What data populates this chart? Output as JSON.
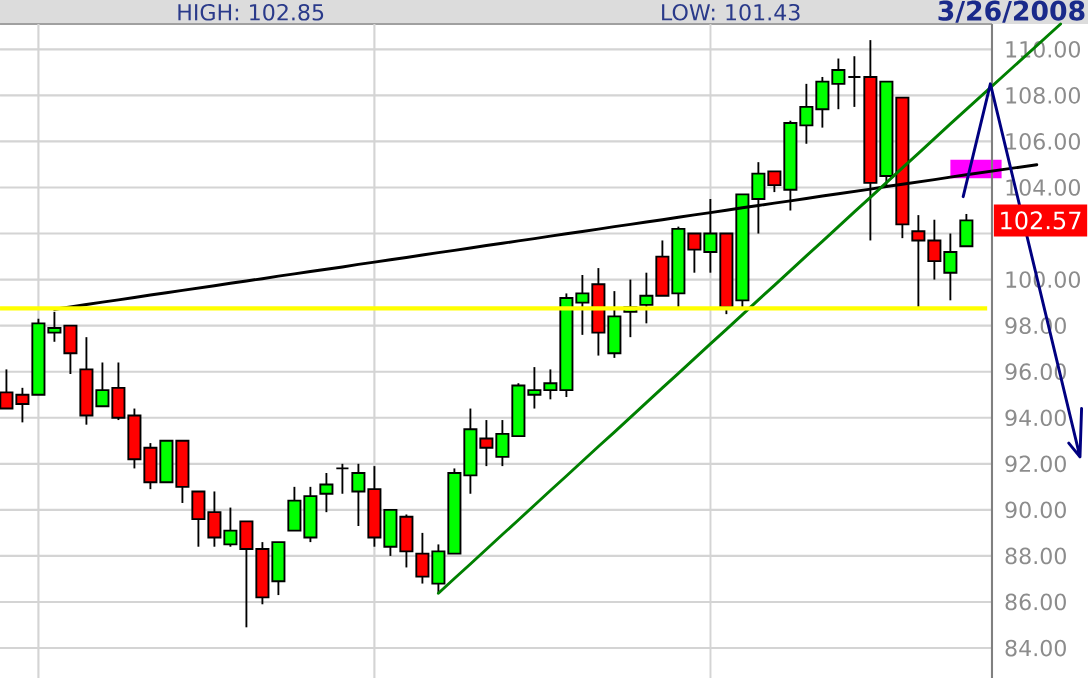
{
  "chart_data": {
    "type": "candlestick",
    "title": "3/26/2008",
    "annotations": [
      "HIGH: 102.85",
      "LOW: 101.43",
      "102.57"
    ],
    "categories": [
      null,
      null,
      null,
      null,
      null,
      null,
      null,
      null,
      null,
      null,
      null,
      null,
      null,
      null,
      null,
      null,
      null,
      null,
      null,
      null,
      null,
      null,
      null,
      null,
      null,
      null,
      null,
      null,
      null,
      null,
      null,
      null,
      null,
      null,
      null,
      null,
      null,
      null,
      null,
      null,
      null,
      null,
      null,
      null,
      null,
      null,
      null,
      null,
      null,
      null,
      null,
      null,
      null,
      null,
      null,
      null,
      null,
      null,
      null,
      null,
      null
    ],
    "ohlc": [
      [
        95.1,
        96.1,
        94.4,
        94.4
      ],
      [
        95.0,
        95.3,
        93.8,
        94.6
      ],
      [
        95.0,
        98.3,
        95.0,
        98.1
      ],
      [
        97.7,
        98.6,
        97.3,
        97.9
      ],
      [
        98.0,
        98.0,
        95.9,
        96.8
      ],
      [
        96.1,
        97.5,
        93.7,
        94.1
      ],
      [
        94.5,
        96.4,
        94.5,
        95.2
      ],
      [
        95.3,
        96.4,
        93.9,
        94.0
      ],
      [
        94.1,
        94.4,
        91.8,
        92.2
      ],
      [
        92.7,
        92.9,
        90.9,
        91.2
      ],
      [
        91.2,
        93.0,
        91.2,
        93.0
      ],
      [
        93.0,
        93.0,
        90.3,
        91.0
      ],
      [
        90.8,
        90.8,
        88.4,
        89.6
      ],
      [
        89.9,
        90.8,
        88.4,
        88.8
      ],
      [
        88.5,
        90.1,
        88.4,
        89.1
      ],
      [
        89.5,
        89.5,
        84.9,
        88.3
      ],
      [
        88.3,
        88.6,
        85.9,
        86.2
      ],
      [
        86.9,
        88.6,
        86.3,
        88.6
      ],
      [
        89.1,
        91.0,
        89.1,
        90.4
      ],
      [
        88.8,
        91.0,
        88.6,
        90.6
      ],
      [
        90.7,
        91.6,
        89.9,
        91.1
      ],
      [
        91.8,
        92.0,
        90.7,
        91.8
      ],
      [
        90.8,
        92.0,
        89.3,
        91.6
      ],
      [
        90.9,
        91.9,
        88.4,
        88.8
      ],
      [
        88.4,
        90.0,
        88.0,
        90.0
      ],
      [
        89.7,
        89.8,
        87.5,
        88.2
      ],
      [
        88.1,
        89.0,
        86.8,
        87.1
      ],
      [
        86.8,
        88.5,
        86.4,
        88.2
      ],
      [
        88.1,
        91.8,
        88.1,
        91.6
      ],
      [
        91.5,
        94.4,
        90.7,
        93.5
      ],
      [
        93.1,
        93.9,
        91.9,
        92.7
      ],
      [
        92.3,
        93.9,
        91.9,
        93.3
      ],
      [
        93.2,
        95.5,
        93.2,
        95.4
      ],
      [
        95.0,
        96.2,
        94.4,
        95.2
      ],
      [
        95.2,
        96.1,
        94.8,
        95.5
      ],
      [
        95.2,
        99.4,
        94.9,
        99.2
      ],
      [
        99.0,
        100.2,
        97.6,
        99.4
      ],
      [
        99.8,
        100.5,
        96.7,
        97.7
      ],
      [
        96.8,
        99.5,
        96.6,
        98.4
      ],
      [
        98.6,
        100.0,
        97.5,
        98.8
      ],
      [
        98.9,
        100.3,
        98.1,
        99.3
      ],
      [
        101.0,
        101.7,
        99.3,
        99.3
      ],
      [
        99.4,
        102.3,
        98.7,
        102.2
      ],
      [
        102.0,
        102.0,
        100.3,
        101.3
      ],
      [
        101.2,
        103.5,
        100.3,
        102.0
      ],
      [
        102.0,
        102.0,
        98.5,
        98.8
      ],
      [
        99.1,
        103.7,
        98.8,
        103.7
      ],
      [
        103.5,
        105.1,
        102.0,
        104.6
      ],
      [
        104.7,
        104.7,
        103.8,
        104.1
      ],
      [
        103.9,
        106.9,
        103.0,
        106.8
      ],
      [
        106.7,
        108.5,
        105.9,
        107.5
      ],
      [
        107.4,
        108.8,
        106.6,
        108.6
      ],
      [
        108.5,
        109.6,
        107.4,
        109.1
      ],
      [
        108.8,
        109.7,
        107.5,
        108.8
      ],
      [
        108.8,
        110.4,
        101.7,
        104.2
      ],
      [
        104.5,
        108.6,
        104.0,
        108.6
      ],
      [
        107.9,
        107.9,
        101.8,
        102.4
      ],
      [
        102.1,
        102.8,
        98.8,
        101.7
      ],
      [
        101.7,
        102.6,
        100.0,
        100.8
      ],
      [
        100.3,
        102.0,
        99.1,
        101.2
      ],
      [
        101.45,
        102.85,
        101.43,
        102.57
      ]
    ],
    "colors": [
      "#ff0000",
      "#ff0000",
      "#00ff00",
      "#00ff00",
      "#ff0000",
      "#ff0000",
      "#00ff00",
      "#ff0000",
      "#ff0000",
      "#ff0000",
      "#00ff00",
      "#ff0000",
      "#ff0000",
      "#ff0000",
      "#00ff00",
      "#ff0000",
      "#ff0000",
      "#00ff00",
      "#00ff00",
      "#00ff00",
      "#00ff00",
      "#000000",
      "#00ff00",
      "#ff0000",
      "#00ff00",
      "#ff0000",
      "#ff0000",
      "#00ff00",
      "#00ff00",
      "#00ff00",
      "#ff0000",
      "#00ff00",
      "#00ff00",
      "#00ff00",
      "#00ff00",
      "#00ff00",
      "#00ff00",
      "#ff0000",
      "#00ff00",
      "#00ff00",
      "#00ff00",
      "#ff0000",
      "#00ff00",
      "#ff0000",
      "#00ff00",
      "#ff0000",
      "#00ff00",
      "#00ff00",
      "#ff0000",
      "#00ff00",
      "#00ff00",
      "#00ff00",
      "#00ff00",
      "#000000",
      "#ff0000",
      "#00ff00",
      "#ff0000",
      "#ff0000",
      "#ff0000",
      "#00ff00",
      "#00ff00"
    ],
    "series": [
      {
        "type": "line",
        "color": "#000000",
        "values": [
          null,
          null,
          null,
          98.71,
          98.81,
          98.92,
          99.02,
          99.12,
          99.22,
          99.33,
          99.43,
          99.53,
          99.63,
          99.73,
          99.84,
          99.94,
          100.04,
          100.15,
          100.25,
          100.35,
          100.45,
          100.55,
          100.66,
          100.76,
          100.86,
          100.96,
          101.07,
          101.17,
          101.27,
          101.37,
          101.48,
          101.58,
          101.68,
          101.78,
          101.89,
          101.99,
          102.09,
          102.19,
          102.3,
          102.4,
          102.5,
          102.6,
          102.71,
          102.81,
          102.91,
          103.01,
          103.12,
          103.22,
          103.32,
          103.42,
          103.52,
          103.63,
          103.73,
          103.83,
          103.93,
          104.04,
          104.14,
          104.24,
          104.34,
          104.45,
          104.55
        ]
      },
      {
        "type": "line",
        "color": "#008000",
        "values": [
          null,
          null,
          null,
          null,
          null,
          null,
          null,
          null,
          null,
          null,
          null,
          null,
          null,
          null,
          null,
          null,
          null,
          null,
          null,
          null,
          null,
          null,
          null,
          null,
          null,
          null,
          null,
          86.38,
          87.02,
          87.65,
          88.29,
          88.93,
          89.56,
          90.2,
          90.84,
          91.47,
          92.11,
          92.75,
          93.38,
          94.02,
          94.66,
          95.3,
          95.93,
          96.57,
          97.21,
          97.84,
          98.48,
          99.12,
          99.75,
          100.39,
          101.03,
          101.66,
          102.3,
          102.94,
          103.57,
          104.21,
          104.85,
          105.48,
          106.12,
          106.76,
          107.39
        ]
      }
    ],
    "ref_lines": [
      {
        "axis": "y",
        "value": 98.75,
        "color": "#ffff00"
      }
    ],
    "ylim": [
      82.7,
      111.1
    ],
    "yticks": [
      {
        "value": 84,
        "label": "84.00"
      },
      {
        "value": 86,
        "label": "86.00"
      },
      {
        "value": 88,
        "label": "88.00"
      },
      {
        "value": 90,
        "label": "90.00"
      },
      {
        "value": 92,
        "label": "92.00"
      },
      {
        "value": 94,
        "label": "94.00"
      },
      {
        "value": 96,
        "label": "96.00"
      },
      {
        "value": 98,
        "label": "98.00"
      },
      {
        "value": 100,
        "label": "100.00"
      },
      {
        "value": 102,
        "label": null
      },
      {
        "value": 104,
        "label": "104.00"
      },
      {
        "value": 106,
        "label": "106.00"
      },
      {
        "value": 108,
        "label": "108.00"
      },
      {
        "value": 110,
        "label": "110.00"
      }
    ],
    "grid": true
  }
}
